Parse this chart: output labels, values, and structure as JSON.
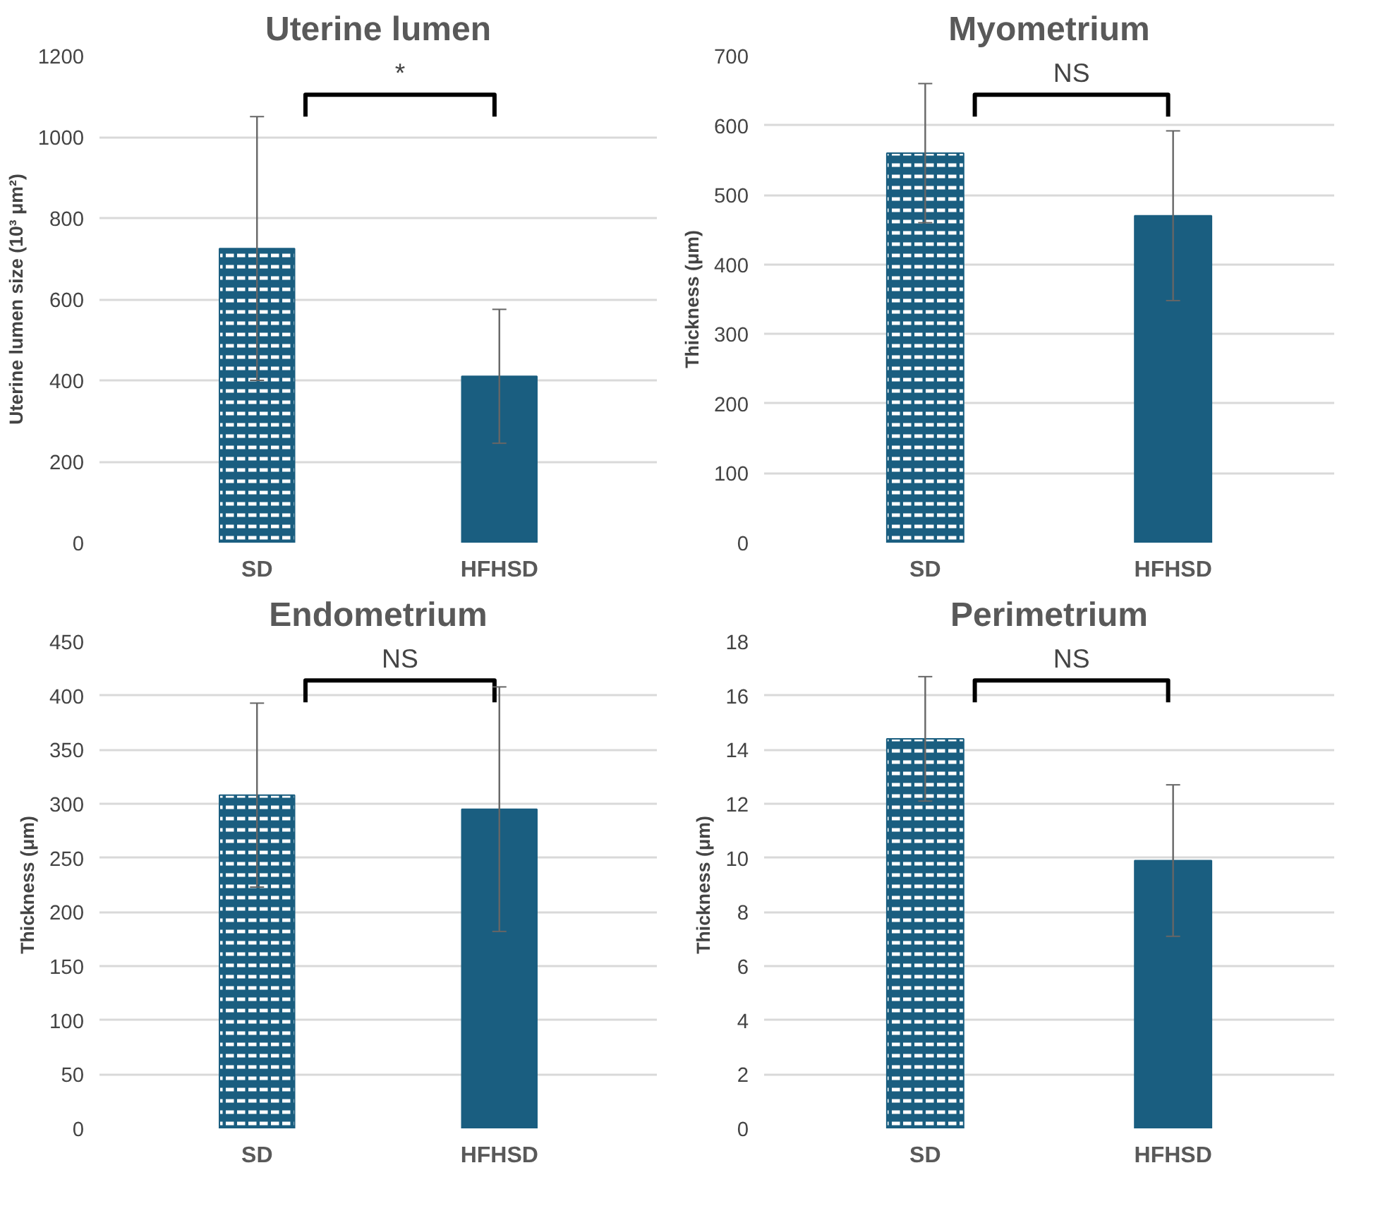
{
  "chart_data": [
    {
      "type": "bar",
      "title": "Uterine lumen",
      "ylabel": "Uterine lumen size (10³ μm²)",
      "categories": [
        "SD",
        "HFHSD"
      ],
      "values": [
        725,
        410
      ],
      "errors": [
        325,
        165
      ],
      "colors": [
        "#1a5e80",
        "#1a5e80"
      ],
      "ylim": [
        0,
        1200
      ],
      "yticks": [
        0,
        200,
        400,
        600,
        800,
        1000,
        1200
      ],
      "grid": "y",
      "annotations": [
        "*"
      ]
    },
    {
      "type": "bar",
      "title": "Myometrium",
      "ylabel": "Thickness (μm)",
      "categories": [
        "SD",
        "HFHSD"
      ],
      "values": [
        560,
        470
      ],
      "errors": [
        100,
        122
      ],
      "colors": [
        "#1a5e80",
        "#1a5e80"
      ],
      "ylim": [
        0,
        700
      ],
      "yticks": [
        0,
        100,
        200,
        300,
        400,
        500,
        600,
        700
      ],
      "grid": "y",
      "annotations": [
        "NS"
      ]
    },
    {
      "type": "bar",
      "title": "Endometrium",
      "ylabel": "Thickness (μm)",
      "categories": [
        "SD",
        "HFHSD"
      ],
      "values": [
        308,
        295
      ],
      "errors": [
        85,
        113
      ],
      "colors": [
        "#1a5e80",
        "#1a5e80"
      ],
      "ylim": [
        0,
        450
      ],
      "yticks": [
        0,
        50,
        100,
        150,
        200,
        250,
        300,
        350,
        400,
        450
      ],
      "grid": "y",
      "annotations": [
        "NS"
      ]
    },
    {
      "type": "bar",
      "title": "Perimetrium",
      "ylabel": "Thickness (μm)",
      "categories": [
        "SD",
        "HFHSD"
      ],
      "values": [
        14.4,
        9.9
      ],
      "errors": [
        2.3,
        2.8
      ],
      "colors": [
        "#1a5e80",
        "#1a5e80"
      ],
      "ylim": [
        0,
        18
      ],
      "yticks": [
        0,
        2,
        4,
        6,
        8,
        10,
        12,
        14,
        16,
        18
      ],
      "grid": "y",
      "annotations": [
        "NS"
      ]
    }
  ]
}
